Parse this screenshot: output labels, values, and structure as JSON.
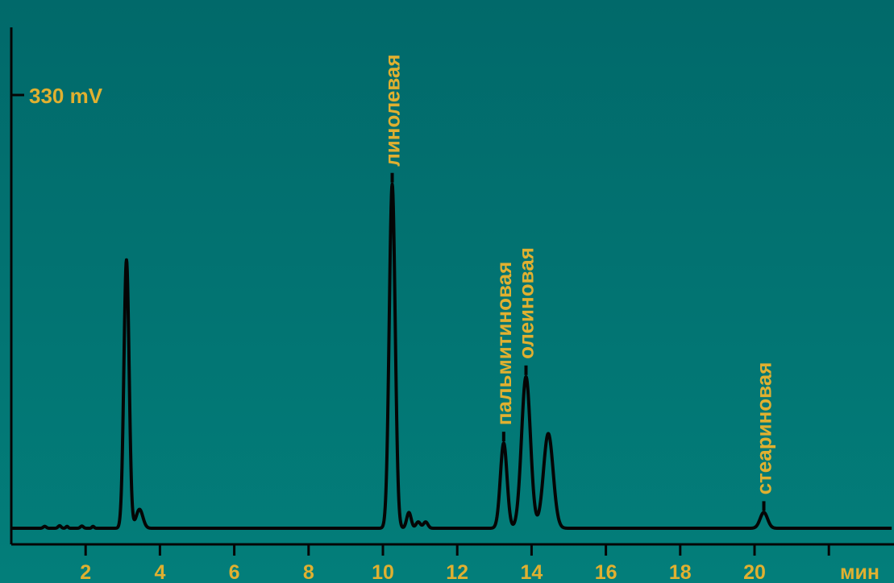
{
  "colors": {
    "background_top": "#01696a",
    "background_bottom": "#037e7a",
    "text": "#e0b030",
    "trace": "#050505"
  },
  "chart_data": {
    "type": "line",
    "y_marker_label": "330 mV",
    "x_unit_label": "мин",
    "x_ticks": [
      2,
      4,
      6,
      8,
      10,
      12,
      14,
      16,
      18,
      20
    ],
    "xlim": [
      0,
      22
    ],
    "grid": false,
    "peaks": [
      {
        "label": "",
        "x": 3.1,
        "height": 0.85
      },
      {
        "label": "линолевая",
        "x": 10.25,
        "height": 1.09
      },
      {
        "label": "пальмитиновая",
        "x": 13.25,
        "height": 0.27
      },
      {
        "label": "олеиновая",
        "x": 13.85,
        "height": 0.48
      },
      {
        "label": "",
        "x": 14.45,
        "height": 0.3
      },
      {
        "label": "стеариновая",
        "x": 20.25,
        "height": 0.05
      }
    ]
  }
}
